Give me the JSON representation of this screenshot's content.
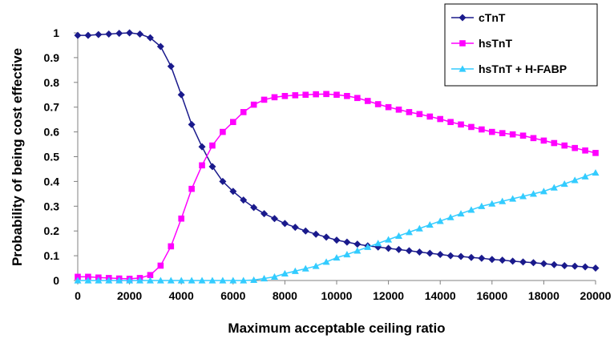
{
  "chart_data": {
    "type": "line",
    "title": "",
    "xlabel": "Maximum acceptable ceiling ratio",
    "ylabel": "Probability of being cost effective",
    "xlim": [
      0,
      20000
    ],
    "ylim": [
      0,
      1
    ],
    "x_ticks": [
      0,
      2000,
      4000,
      6000,
      8000,
      10000,
      12000,
      14000,
      16000,
      18000,
      20000
    ],
    "y_ticks": [
      0,
      0.1,
      0.2,
      0.3,
      0.4,
      0.5,
      0.6,
      0.7,
      0.8,
      0.9,
      1
    ],
    "y_tick_labels": [
      "0",
      "0.1",
      "0.2",
      "0.3",
      "0.4",
      "0.5",
      "0.6",
      "0.7",
      "0.8",
      "0.9",
      "1"
    ],
    "grid": false,
    "legend_position": "top-right",
    "x": [
      0,
      400,
      800,
      1200,
      1600,
      2000,
      2400,
      2800,
      3200,
      3600,
      4000,
      4400,
      4800,
      5200,
      5600,
      6000,
      6400,
      6800,
      7200,
      7600,
      8000,
      8400,
      8800,
      9200,
      9600,
      10000,
      10400,
      10800,
      11200,
      11600,
      12000,
      12400,
      12800,
      13200,
      13600,
      14000,
      14400,
      14800,
      15200,
      15600,
      16000,
      16400,
      16800,
      17200,
      17600,
      18000,
      18400,
      18800,
      19200,
      19600,
      20000
    ],
    "series": [
      {
        "name": "cTnT",
        "color": "#1a1a8c",
        "marker": "diamond",
        "values": [
          0.99,
          0.99,
          0.993,
          0.995,
          0.998,
          1.0,
          0.995,
          0.98,
          0.945,
          0.865,
          0.75,
          0.63,
          0.54,
          0.46,
          0.4,
          0.36,
          0.325,
          0.295,
          0.27,
          0.25,
          0.23,
          0.215,
          0.2,
          0.187,
          0.175,
          0.163,
          0.155,
          0.147,
          0.14,
          0.135,
          0.13,
          0.125,
          0.12,
          0.115,
          0.11,
          0.105,
          0.1,
          0.097,
          0.093,
          0.09,
          0.085,
          0.082,
          0.078,
          0.075,
          0.072,
          0.068,
          0.064,
          0.06,
          0.058,
          0.055,
          0.05
        ]
      },
      {
        "name": "hsTnT",
        "color": "#ff00ff",
        "marker": "square",
        "values": [
          0.015,
          0.015,
          0.012,
          0.01,
          0.008,
          0.007,
          0.01,
          0.022,
          0.06,
          0.138,
          0.25,
          0.37,
          0.465,
          0.545,
          0.6,
          0.64,
          0.68,
          0.71,
          0.73,
          0.74,
          0.745,
          0.748,
          0.75,
          0.752,
          0.753,
          0.75,
          0.745,
          0.737,
          0.725,
          0.712,
          0.7,
          0.69,
          0.68,
          0.672,
          0.662,
          0.652,
          0.64,
          0.63,
          0.62,
          0.61,
          0.6,
          0.595,
          0.59,
          0.585,
          0.575,
          0.565,
          0.555,
          0.545,
          0.535,
          0.525,
          0.515
        ]
      },
      {
        "name": "hsTnT + H-FABP",
        "color": "#33ccff",
        "marker": "triangle",
        "values": [
          0,
          0,
          0,
          0,
          0,
          0,
          0,
          0,
          0,
          0,
          0,
          0,
          0,
          0,
          0,
          0,
          0,
          0.002,
          0.008,
          0.015,
          0.028,
          0.038,
          0.048,
          0.058,
          0.075,
          0.092,
          0.105,
          0.12,
          0.135,
          0.15,
          0.165,
          0.18,
          0.195,
          0.21,
          0.225,
          0.24,
          0.255,
          0.27,
          0.285,
          0.3,
          0.31,
          0.32,
          0.33,
          0.34,
          0.35,
          0.36,
          0.375,
          0.39,
          0.405,
          0.42,
          0.435
        ]
      }
    ]
  }
}
